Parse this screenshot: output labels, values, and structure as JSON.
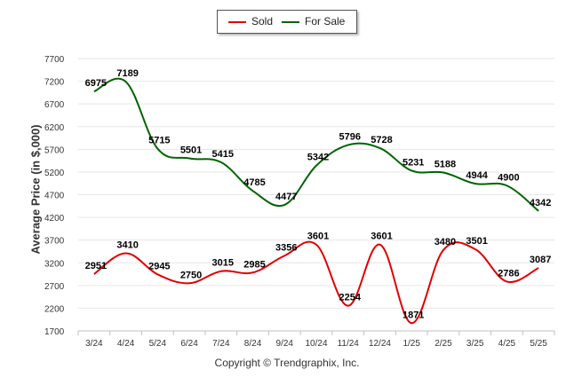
{
  "chart_data": {
    "type": "line",
    "categories": [
      "3/24",
      "4/24",
      "5/24",
      "6/24",
      "7/24",
      "8/24",
      "9/24",
      "10/24",
      "11/24",
      "12/24",
      "1/25",
      "2/25",
      "3/25",
      "4/25",
      "5/25"
    ],
    "series": [
      {
        "name": "Sold",
        "color": "#e00000",
        "values": [
          2951,
          3410,
          2945,
          2750,
          3015,
          2985,
          3356,
          3601,
          2254,
          3601,
          1871,
          3480,
          3501,
          2786,
          3087
        ]
      },
      {
        "name": "For Sale",
        "color": "#006400",
        "values": [
          6975,
          7189,
          5715,
          5501,
          5415,
          4785,
          4477,
          5342,
          5796,
          5728,
          5231,
          5188,
          4944,
          4900,
          4342
        ]
      }
    ],
    "ylabel": "Average Price (in $,000)",
    "ylim": [
      1700,
      7700
    ],
    "yticks": [
      1700,
      2200,
      2700,
      3200,
      3700,
      4200,
      4700,
      5200,
      5700,
      6200,
      6700,
      7200,
      7700
    ],
    "grid": true,
    "legend": "top-center"
  },
  "legend": {
    "sold_label": "Sold",
    "forsale_label": "For Sale"
  },
  "credit": "Copyright © Trendgraphix, Inc."
}
